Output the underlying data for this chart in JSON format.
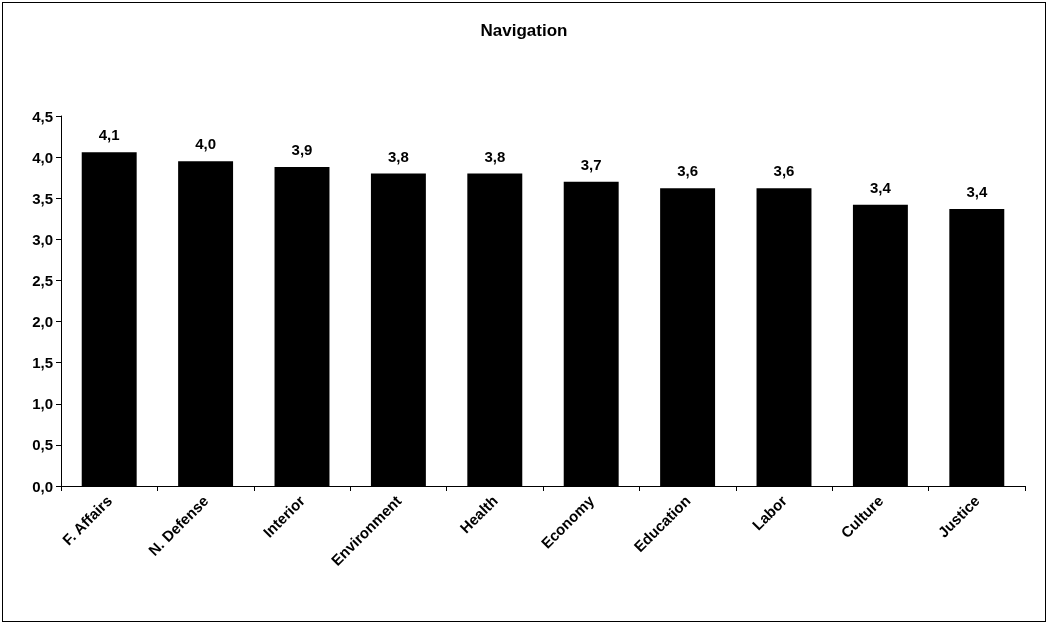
{
  "chart_data": {
    "type": "bar",
    "title": "Navigation",
    "categories": [
      "F. Affairs",
      "N. Defense",
      "Interior",
      "Environment",
      "Health",
      "Economy",
      "Education",
      "Labor",
      "Culture",
      "Justice"
    ],
    "values": [
      4.06,
      3.95,
      3.88,
      3.8,
      3.8,
      3.7,
      3.62,
      3.62,
      3.42,
      3.37
    ],
    "value_labels": [
      "4,1",
      "4,0",
      "3,9",
      "3,8",
      "3,8",
      "3,7",
      "3,6",
      "3,6",
      "3,4",
      "3,4"
    ],
    "color": "#000000",
    "ylim": [
      0,
      4.5
    ],
    "yticks": [
      {
        "value": 0,
        "label": "0,0"
      },
      {
        "value": 0.5,
        "label": "0,5"
      },
      {
        "value": 1,
        "label": "1,0"
      },
      {
        "value": 1.5,
        "label": "1,5"
      },
      {
        "value": 2,
        "label": "2,0"
      },
      {
        "value": 2.5,
        "label": "2,5"
      },
      {
        "value": 3,
        "label": "3,0"
      },
      {
        "value": 3.5,
        "label": "3,5"
      },
      {
        "value": 4,
        "label": "4,0"
      },
      {
        "value": 4.5,
        "label": "4,5"
      }
    ],
    "grid": false
  }
}
